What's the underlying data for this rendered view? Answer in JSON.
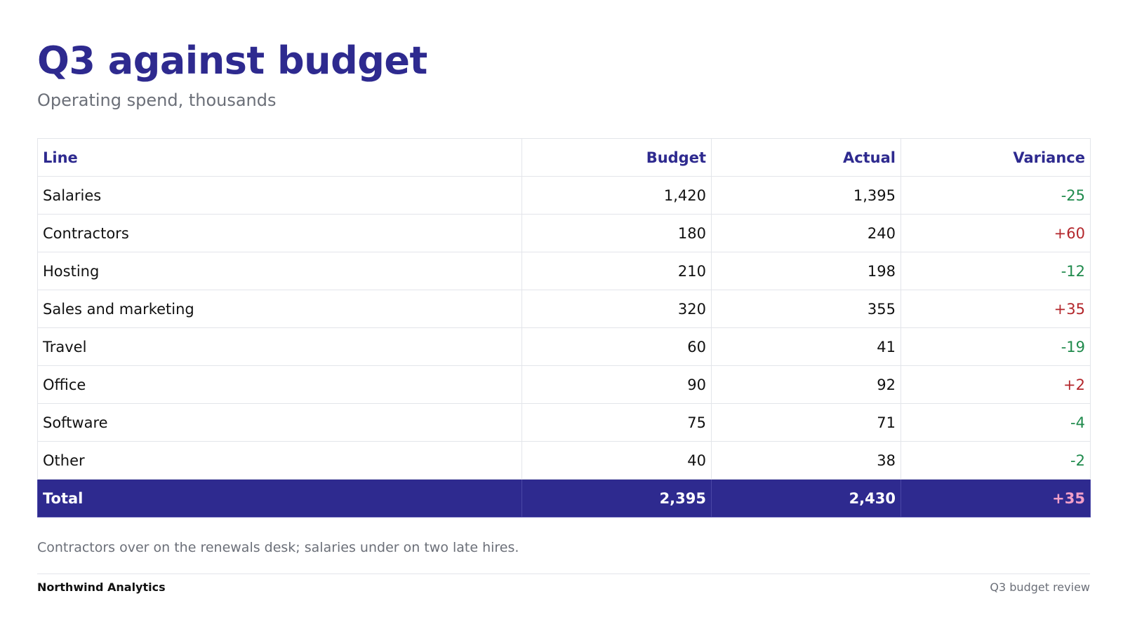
{
  "header": {
    "title": "Q3 against budget",
    "subtitle": "Operating spend, thousands"
  },
  "table": {
    "columns": [
      "Line",
      "Budget",
      "Actual",
      "Variance"
    ],
    "rows": [
      {
        "line": "Salaries",
        "budget": "1,420",
        "actual": "1,395",
        "variance": "-25",
        "status": "under"
      },
      {
        "line": "Contractors",
        "budget": "180",
        "actual": "240",
        "variance": "+60",
        "status": "over"
      },
      {
        "line": "Hosting",
        "budget": "210",
        "actual": "198",
        "variance": "-12",
        "status": "under"
      },
      {
        "line": "Sales and marketing",
        "budget": "320",
        "actual": "355",
        "variance": "+35",
        "status": "over"
      },
      {
        "line": "Travel",
        "budget": "60",
        "actual": "41",
        "variance": "-19",
        "status": "under"
      },
      {
        "line": "Office",
        "budget": "90",
        "actual": "92",
        "variance": "+2",
        "status": "over"
      },
      {
        "line": "Software",
        "budget": "75",
        "actual": "71",
        "variance": "-4",
        "status": "under"
      },
      {
        "line": "Other",
        "budget": "40",
        "actual": "38",
        "variance": "-2",
        "status": "under"
      }
    ],
    "total": {
      "line": "Total",
      "budget": "2,395",
      "actual": "2,430",
      "variance": "+35",
      "status": "over"
    }
  },
  "note": "Contractors over on the renewals desk; salaries under on two late hires.",
  "footer": {
    "brand": "Northwind Analytics",
    "deck": "Q3 budget review"
  },
  "colors": {
    "accent": "#2e2a8f",
    "under": "#1f8a4c",
    "over": "#b3262b",
    "total_over": "#f2a0c8"
  }
}
